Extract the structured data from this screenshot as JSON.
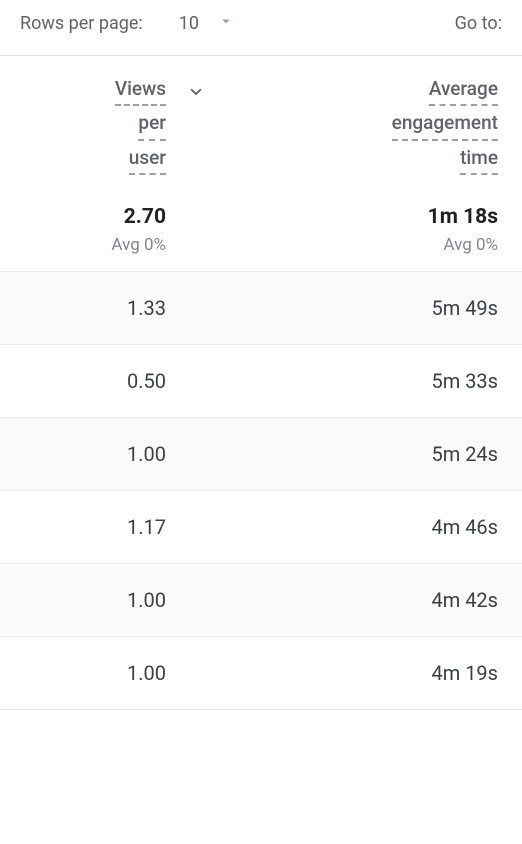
{
  "pagination": {
    "rows_per_page_label": "Rows per page:",
    "page_size": "10",
    "goto_label": "Go to:"
  },
  "columns": {
    "views_per_user": {
      "line1": "Views",
      "line2": "per",
      "line3": "user"
    },
    "avg_engagement_time": {
      "line1": "Average",
      "line2": "engagement",
      "line3": "time"
    }
  },
  "summary": {
    "views_per_user": {
      "value": "2.70",
      "sub": "Avg 0%"
    },
    "avg_engagement_time": {
      "value": "1m 18s",
      "sub": "Avg 0%"
    }
  },
  "rows": [
    {
      "views": "1.33",
      "eng": "5m 49s"
    },
    {
      "views": "0.50",
      "eng": "5m 33s"
    },
    {
      "views": "1.00",
      "eng": "5m 24s"
    },
    {
      "views": "1.17",
      "eng": "4m 46s"
    },
    {
      "views": "1.00",
      "eng": "4m 42s"
    },
    {
      "views": "1.00",
      "eng": "4m 19s"
    }
  ],
  "style": {
    "stripe_bg": "#fafafa",
    "border_color": "#ebebeb",
    "text_muted": "#5f6368",
    "text_strong": "#202124"
  }
}
